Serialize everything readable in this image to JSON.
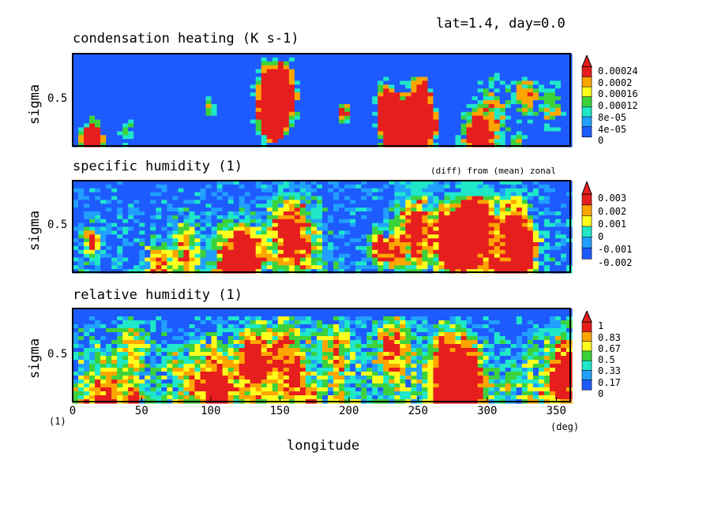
{
  "header": "lat=1.4, day=0.0",
  "palette": [
    "#1e5bff",
    "#21a0ff",
    "#1ee8c8",
    "#3cd23c",
    "#ffff1e",
    "#ffa500",
    "#e61e1e"
  ],
  "chart_data": [
    {
      "type": "heatmap",
      "title": "condensation heating (K s-1)",
      "note": "",
      "ylabel": "sigma",
      "ytick": "0.5",
      "levels": [
        "0.00024",
        "0.0002",
        "0.00016",
        "0.00012",
        "8e-05",
        "4e-05",
        "0"
      ],
      "xlim": [
        0,
        360
      ]
    },
    {
      "type": "heatmap",
      "title": "specific humidity (1)",
      "note": "(diff) from (mean) zonal",
      "ylabel": "sigma",
      "ytick": "0.5",
      "levels": [
        "0.003",
        "0.002",
        "0.001",
        "0",
        "-0.001",
        "-0.002"
      ],
      "xlim": [
        0,
        360
      ]
    },
    {
      "type": "heatmap",
      "title": "relative humidity (1)",
      "note": "",
      "ylabel": "sigma",
      "ytick": "0.5",
      "levels": [
        "1",
        "0.83",
        "0.67",
        "0.5",
        "0.33",
        "0.17",
        "0"
      ],
      "xlim": [
        0,
        360
      ]
    }
  ],
  "xaxis": {
    "label": "longitude",
    "ticks": [
      "0",
      "50",
      "100",
      "150",
      "200",
      "250",
      "300",
      "350"
    ],
    "unit_left": "(1)",
    "unit_right": "(deg)"
  }
}
